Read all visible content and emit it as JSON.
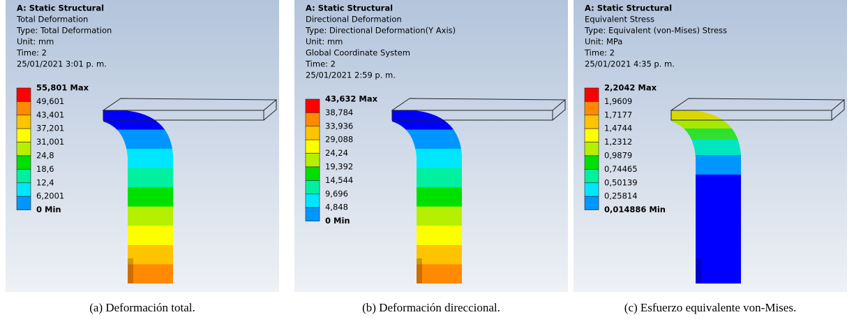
{
  "panels": [
    {
      "header": [
        "A: Static Structural",
        "Total Deformation",
        "Type: Total Deformation",
        "Unit: mm",
        "Time: 2",
        "25/01/2021 3:01 p. m."
      ],
      "legend": [
        "55,801 Max",
        "49,601",
        "43,401",
        "37,201",
        "31,001",
        "24,8",
        "18,6",
        "12,4",
        "6,2001",
        "0 Min"
      ],
      "caption": "(a) Deformación total."
    },
    {
      "header": [
        "A: Static Structural",
        "Directional Deformation",
        "Type: Directional Deformation(Y Axis)",
        "Unit: mm",
        "Global Coordinate System",
        "Time: 2",
        "25/01/2021 2:59 p. m."
      ],
      "legend": [
        "43,632 Max",
        "38,784",
        "33,936",
        "29,088",
        "24,24",
        "19,392",
        "14,544",
        "9,696",
        "4,848",
        "0 Min"
      ],
      "caption": "(b) Deformación direccional."
    },
    {
      "header": [
        "A: Static Structural",
        "Equivalent Stress",
        "Type: Equivalent (von-Mises) Stress",
        "Unit: MPa",
        "Time: 2",
        "25/01/2021 4:35 p. m."
      ],
      "legend": [
        "2,2042 Max",
        "1,9609",
        "1,7177",
        "1,4744",
        "1,2312",
        "0,9879",
        "0,74465",
        "0,50139",
        "0,25814",
        "0,014886 Min"
      ],
      "caption": "(c) Esfuerzo equivalente von-Mises."
    }
  ]
}
